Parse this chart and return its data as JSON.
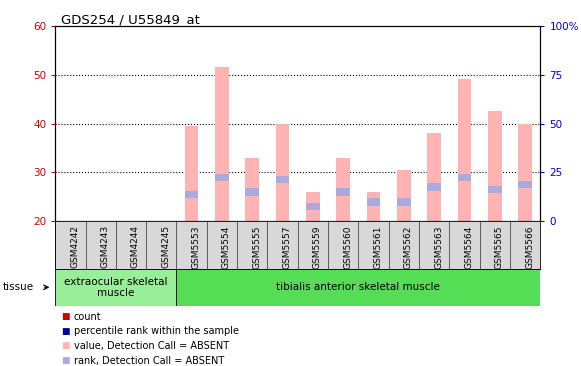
{
  "title": "GDS254 / U55849_at",
  "samples": [
    "GSM4242",
    "GSM4243",
    "GSM4244",
    "GSM4245",
    "GSM5553",
    "GSM5554",
    "GSM5555",
    "GSM5557",
    "GSM5559",
    "GSM5560",
    "GSM5561",
    "GSM5562",
    "GSM5563",
    "GSM5564",
    "GSM5565",
    "GSM5566"
  ],
  "pink_bars": [
    0,
    0,
    0,
    0,
    39.5,
    51.5,
    33.0,
    40.0,
    26.0,
    33.0,
    26.0,
    30.5,
    38.0,
    49.0,
    42.5,
    40.0
  ],
  "blue_bars": [
    0,
    0,
    0,
    0,
    25.5,
    29.0,
    26.0,
    28.5,
    23.0,
    26.0,
    24.0,
    24.0,
    27.0,
    29.0,
    26.5,
    27.5
  ],
  "ylim_left": [
    20,
    60
  ],
  "ylim_right": [
    0,
    100
  ],
  "yticks_left": [
    20,
    30,
    40,
    50,
    60
  ],
  "yticks_right": [
    0,
    25,
    50,
    75,
    100
  ],
  "ytick_labels_right": [
    "0",
    "25",
    "50",
    "75",
    "100%"
  ],
  "bar_bottom": 20,
  "pink_color": "#FFB3B3",
  "blue_color": "#AAAADD",
  "red_color": "#CC0000",
  "dark_blue_color": "#000099",
  "tissue_groups": [
    {
      "label": "extraocular skeletal\nmuscle",
      "start": 0,
      "end": 4,
      "color": "#99EE99"
    },
    {
      "label": "tibialis anterior skeletal muscle",
      "start": 4,
      "end": 16,
      "color": "#55DD55"
    }
  ],
  "tick_color_left": "#CC0000",
  "tick_color_right": "#0000CC",
  "bar_width": 0.45,
  "blue_bar_height": 1.5
}
